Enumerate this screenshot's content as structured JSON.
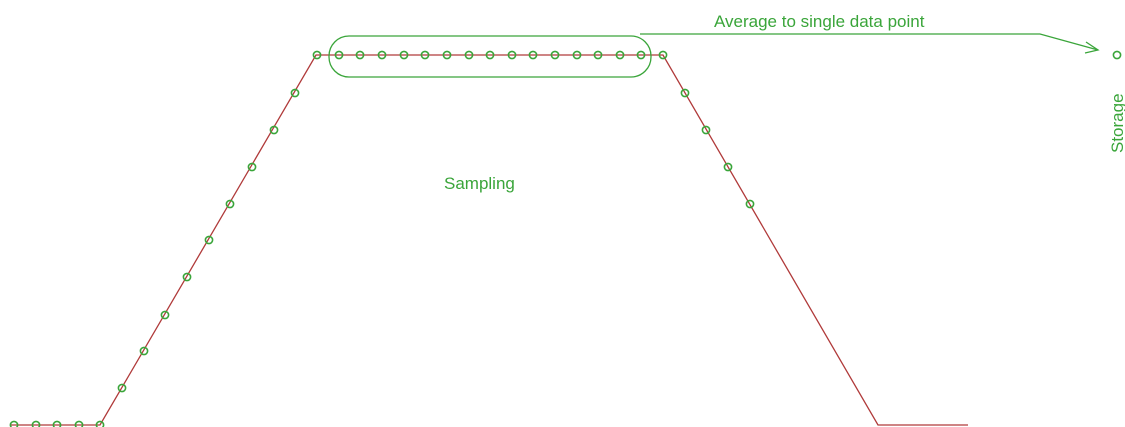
{
  "labels": {
    "annotation": "Average to single data point",
    "center": "Sampling",
    "side": "Storage"
  },
  "colors": {
    "signal": "#b03a3a",
    "sample": "#3aa53a",
    "text": "#3aa53a"
  }
}
